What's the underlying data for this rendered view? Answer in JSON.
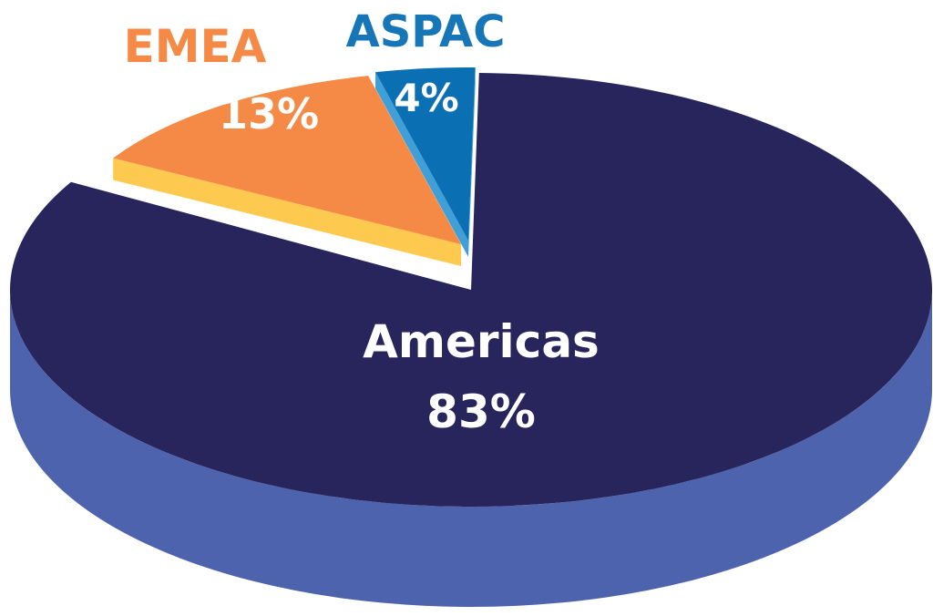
{
  "chart_data": {
    "type": "pie",
    "title": "",
    "slices": [
      {
        "name": "Americas",
        "value": 83,
        "label": "83%",
        "top_color": "#28245c",
        "side_color": "#4e63ae",
        "name_color": "#ffffff",
        "value_color": "#ffffff"
      },
      {
        "name": "EMEA",
        "value": 13,
        "label": "13%",
        "top_color": "#f58a47",
        "side_color": "#fdc94f",
        "name_color": "#f58a47",
        "value_color": "#ffffff"
      },
      {
        "name": "ASPAC",
        "value": 4,
        "label": "4%",
        "top_color": "#0b6fb3",
        "side_color": "#3f9fd6",
        "name_color": "#1676b8",
        "value_color": "#ffffff"
      }
    ],
    "legend": "none",
    "style": "3d-exploded"
  }
}
